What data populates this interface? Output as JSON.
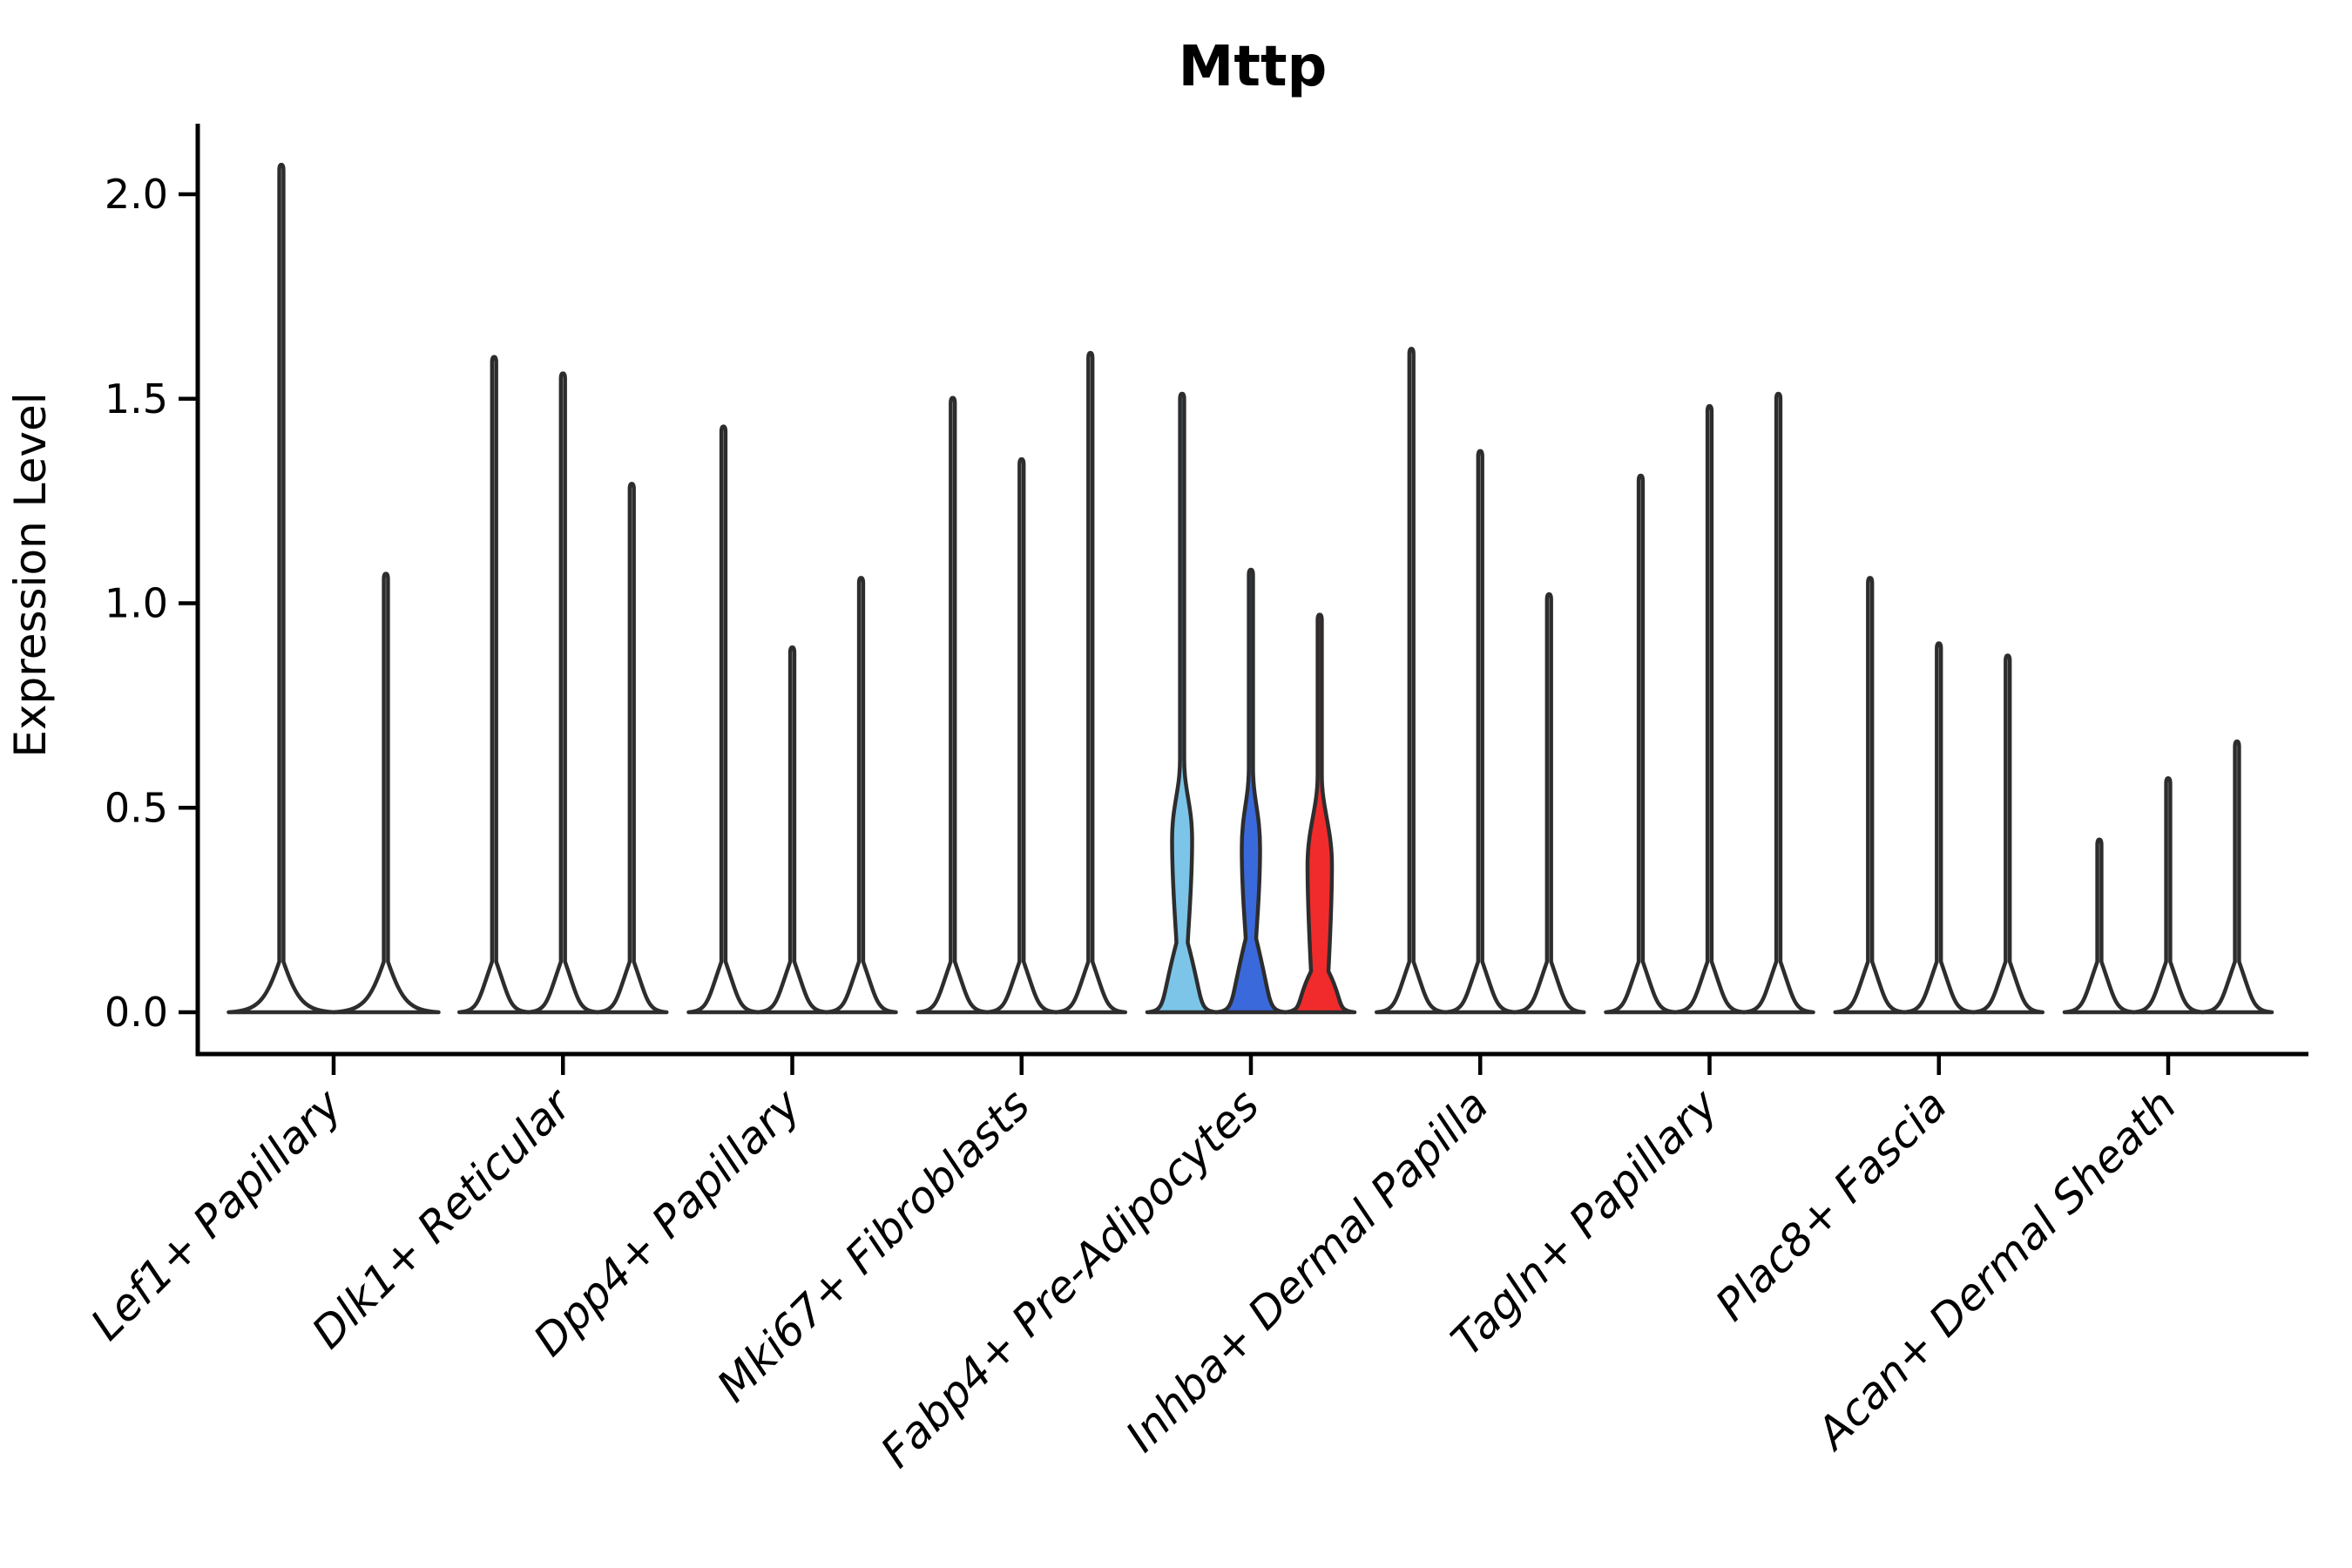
{
  "title": "Mttp",
  "axis": {
    "y_label": "Expression Level",
    "y_ticks": [
      "0.0",
      "0.5",
      "1.0",
      "1.5",
      "2.0"
    ]
  },
  "colors": {
    "violin_stroke": "#2d2d2d",
    "axis_color": "#000000",
    "highlight_lightblue": "#7cc5e8",
    "highlight_blue": "#3a69dc",
    "highlight_red": "#f12b2b",
    "default_fill": "#ffffff"
  },
  "chart_data": {
    "type": "violin",
    "title": "Mttp",
    "xlabel": "",
    "ylabel": "Expression Level",
    "ylim": [
      0,
      2.17
    ],
    "yticks": [
      0.0,
      0.5,
      1.0,
      1.5,
      2.0
    ],
    "grid": false,
    "legend": "none",
    "x_tick_rotation": 45,
    "categories": [
      "Lef1+ Papillary",
      "Dlk1+ Reticular",
      "Dpp4+ Papillary",
      "Mki67+ Fibroblasts",
      "Fabp4+ Pre-Adipocytes",
      "Inhba+ Dermal Papilla",
      "Tagln+ Papillary",
      "Plac8+ Fascia",
      "Acan+ Dermal Sheath"
    ],
    "description": "Split violin plot of Mttp expression; each cluster shows up to three thin violins (max expression spikes rising from a flat base of zeros). Only the Fabp4+ Pre-Adipocytes cluster is colour-highlighted.",
    "groups": [
      {
        "category": "Lef1+ Papillary",
        "violins": [
          {
            "max": 2.07
          },
          {
            "max": 1.07
          }
        ]
      },
      {
        "category": "Dlk1+ Reticular",
        "violins": [
          {
            "max": 1.6
          },
          {
            "max": 1.56
          },
          {
            "max": 1.29
          }
        ]
      },
      {
        "category": "Dpp4+ Papillary",
        "violins": [
          {
            "max": 1.43
          },
          {
            "max": 0.89
          },
          {
            "max": 1.06
          }
        ]
      },
      {
        "category": "Mki67+ Fibroblasts",
        "violins": [
          {
            "max": 1.5
          },
          {
            "max": 1.35
          },
          {
            "max": 1.61
          }
        ]
      },
      {
        "category": "Fabp4+ Pre-Adipocytes",
        "violins": [
          {
            "max": 1.51,
            "color": "#7cc5e8",
            "bulge": {
              "neck": 0.17,
              "nw": 6.5,
              "center": 0.42,
              "bw": 11.5,
              "top": 0.62
            }
          },
          {
            "max": 1.08,
            "color": "#3a69dc",
            "bulge": {
              "neck": 0.18,
              "nw": 6.0,
              "center": 0.4,
              "bw": 10.5,
              "top": 0.6
            }
          },
          {
            "max": 0.97,
            "color": "#f12b2b",
            "bulge": {
              "neck": 0.1,
              "nw": 10.0,
              "center": 0.36,
              "bw": 14.0,
              "top": 0.58
            }
          }
        ]
      },
      {
        "category": "Inhba+ Dermal Papilla",
        "violins": [
          {
            "max": 1.62
          },
          {
            "max": 1.37
          },
          {
            "max": 1.02
          }
        ]
      },
      {
        "category": "Tagln+ Papillary",
        "violins": [
          {
            "max": 1.31
          },
          {
            "max": 1.48
          },
          {
            "max": 1.51
          }
        ]
      },
      {
        "category": "Plac8+ Fascia",
        "violins": [
          {
            "max": 1.06
          },
          {
            "max": 0.9
          },
          {
            "max": 0.87
          }
        ]
      },
      {
        "category": "Acan+ Dermal Sheath",
        "violins": [
          {
            "max": 0.42
          },
          {
            "max": 0.57
          },
          {
            "max": 0.66
          }
        ]
      }
    ]
  }
}
